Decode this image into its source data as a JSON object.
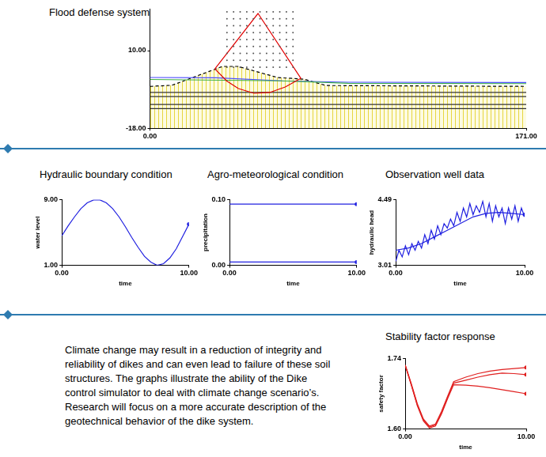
{
  "chart_data": [
    {
      "type": "line",
      "title": "Flood defense system",
      "xlim": [
        0,
        171
      ],
      "ylim": [
        -18,
        25
      ],
      "xticks": [
        {
          "value": 0,
          "label": "0.00"
        },
        {
          "value": 171,
          "label": "171.00"
        }
      ],
      "yticks": [
        {
          "value": -18,
          "label": "-18.00"
        },
        {
          "value": 10,
          "label": "10.00"
        }
      ],
      "grid": false,
      "series": [
        {
          "type": "area",
          "color": "#000000",
          "line_style": "dashed",
          "x": [
            0,
            10,
            33,
            40,
            58,
            70,
            80,
            171
          ],
          "values": [
            -2.9,
            -2.5,
            4.3,
            4.3,
            0.3,
            -0.3,
            -2.6,
            -2.9
          ]
        },
        {
          "color": "#333333",
          "x": [
            0,
            171
          ],
          "values": [
            -5.1,
            -5.1
          ]
        },
        {
          "color": "#333333",
          "x": [
            0,
            171
          ],
          "values": [
            -6.6,
            -6.6
          ]
        },
        {
          "color": "#333333",
          "x": [
            0,
            171
          ],
          "values": [
            -9.4,
            -9.4
          ]
        },
        {
          "color": "#333333",
          "x": [
            0,
            171
          ],
          "values": [
            -10.9,
            -10.9
          ]
        },
        {
          "color": "#4a4aff",
          "x": [
            0,
            30,
            60,
            90,
            171
          ],
          "values": [
            0.3,
            0.2,
            -0.9,
            -1.4,
            -1.5
          ]
        },
        {
          "color": "#3cb043",
          "x": [
            0,
            60,
            90,
            171
          ],
          "values": [
            -0.4,
            -0.9,
            -1.8,
            -1.9
          ]
        },
        {
          "color": "#e00000",
          "x": [
            29.5,
            34.8,
            40.2,
            47.3,
            54.4,
            61.5,
            68.6
          ],
          "values": [
            3.4,
            -0.9,
            -3.7,
            -5.4,
            -5.1,
            -3.1,
            0.0
          ]
        },
        {
          "color": "#e00000",
          "x": [
            29.5,
            49.1,
            68.6
          ],
          "values": [
            3.4,
            23.4,
            0.0
          ]
        },
        {
          "type": "scatter",
          "color": "#555555",
          "marker": "dot",
          "grid_x": [
            35,
            38,
            41,
            44,
            47,
            50,
            53,
            56,
            59,
            62,
            65
          ],
          "grid_y": [
            24,
            21.5,
            19,
            16.5,
            14,
            11.5,
            9,
            6.5,
            4
          ]
        }
      ]
    },
    {
      "type": "line",
      "title": "Hydraulic boundary condition",
      "x_label": "time",
      "y_label": "water level",
      "xlim": [
        0,
        10
      ],
      "ylim": [
        1,
        9
      ],
      "xticks": [
        {
          "value": 0,
          "label": "0.00"
        },
        {
          "value": 10,
          "label": "10.00"
        }
      ],
      "yticks": [
        {
          "value": 1,
          "label": "1.00"
        },
        {
          "value": 9,
          "label": "9.00"
        }
      ],
      "grid": false,
      "x": [
        0,
        0.5,
        1,
        1.5,
        2,
        2.5,
        3,
        3.5,
        4,
        4.5,
        5,
        5.5,
        6,
        6.5,
        7,
        7.5,
        8,
        8.5,
        9,
        9.5,
        10
      ],
      "series": [
        {
          "color": "#2020e0",
          "marker": "end",
          "values": [
            4.6,
            5.8,
            6.9,
            7.9,
            8.6,
            8.95,
            8.95,
            8.6,
            7.9,
            6.9,
            5.7,
            4.4,
            3.2,
            2.1,
            1.4,
            1.0,
            1.2,
            1.9,
            3.0,
            4.5,
            6.0
          ]
        }
      ]
    },
    {
      "type": "line",
      "title": "Agro-meteorological condition",
      "x_label": "time",
      "y_label": "precipitation",
      "xlim": [
        0,
        10
      ],
      "ylim": [
        0,
        0.1
      ],
      "xticks": [
        {
          "value": 0,
          "label": "0.00"
        },
        {
          "value": 10,
          "label": "10.00"
        }
      ],
      "yticks": [
        {
          "value": 0,
          "label": "0.00"
        },
        {
          "value": 0.1,
          "label": "0.10"
        }
      ],
      "grid": false,
      "x": [
        0,
        10
      ],
      "series": [
        {
          "color": "#2020e0",
          "marker": "end",
          "values": [
            0.093,
            0.093
          ]
        },
        {
          "color": "#2020e0",
          "marker": "end",
          "values": [
            0.005,
            0.005
          ]
        }
      ]
    },
    {
      "type": "line",
      "title": "Observation well data",
      "x_label": "time",
      "y_label": "hydraulic head",
      "xlim": [
        0,
        10
      ],
      "ylim": [
        3.01,
        4.49
      ],
      "xticks": [
        {
          "value": 0,
          "label": "0.00"
        },
        {
          "value": 10,
          "label": "10.00"
        }
      ],
      "yticks": [
        3.01,
        4.49
      ],
      "grid": false,
      "series": [
        {
          "color": "#2020e0",
          "x": [
            0,
            0.25,
            0.5,
            0.75,
            1,
            1.25,
            1.5,
            1.75,
            2,
            2.25,
            2.5,
            2.75,
            3,
            3.25,
            3.5,
            3.75,
            4,
            4.25,
            4.5,
            4.75,
            5,
            5.25,
            5.5,
            5.75,
            6,
            6.25,
            6.5,
            6.75,
            7,
            7.25,
            7.5,
            7.75,
            8,
            8.25,
            8.5,
            8.75,
            9,
            9.25,
            9.5,
            9.75,
            10
          ],
          "values": [
            3.1,
            3.35,
            3.2,
            3.45,
            3.25,
            3.5,
            3.35,
            3.55,
            3.4,
            3.7,
            3.5,
            3.8,
            3.6,
            3.9,
            3.7,
            3.95,
            3.85,
            4.05,
            3.9,
            4.2,
            4.0,
            4.3,
            4.1,
            4.4,
            4.15,
            4.35,
            4.2,
            4.45,
            4.1,
            4.4,
            4.0,
            4.35,
            4.1,
            4.3,
            3.95,
            4.3,
            4.05,
            4.35,
            4.0,
            4.3,
            4.1
          ]
        },
        {
          "color": "#2020e0",
          "marker": "end",
          "x": [
            0,
            1,
            2,
            3,
            4,
            5,
            6,
            7,
            8,
            9,
            10
          ],
          "values": [
            3.35,
            3.4,
            3.5,
            3.65,
            3.8,
            3.95,
            4.1,
            4.18,
            4.2,
            4.18,
            4.15
          ]
        }
      ]
    },
    {
      "type": "line",
      "title": "Stability factor response",
      "x_label": "time",
      "y_label": "safety factor",
      "xlim": [
        0,
        10
      ],
      "ylim": [
        1.6,
        1.74
      ],
      "xticks": [
        {
          "value": 0,
          "label": "0.00"
        },
        {
          "value": 10,
          "label": "10.00"
        }
      ],
      "yticks": [
        {
          "value": 1.6,
          "label": "1.60"
        },
        1.74
      ],
      "grid": false,
      "x": [
        0,
        0.5,
        1,
        1.5,
        2,
        2.5,
        3,
        3.5,
        4,
        5,
        6,
        7,
        8,
        9,
        10
      ],
      "series": [
        {
          "color": "#e02020",
          "marker": "end",
          "values": [
            1.727,
            1.69,
            1.65,
            1.62,
            1.606,
            1.61,
            1.635,
            1.665,
            1.694,
            1.703,
            1.71,
            1.715,
            1.718,
            1.72,
            1.722
          ]
        },
        {
          "color": "#e02020",
          "marker": "end",
          "values": [
            1.727,
            1.688,
            1.648,
            1.618,
            1.604,
            1.608,
            1.632,
            1.662,
            1.691,
            1.697,
            1.703,
            1.708,
            1.711,
            1.71,
            1.708
          ]
        },
        {
          "color": "#e02020",
          "marker": "end",
          "values": [
            1.726,
            1.687,
            1.646,
            1.616,
            1.602,
            1.606,
            1.63,
            1.66,
            1.688,
            1.687,
            1.685,
            1.682,
            1.678,
            1.674,
            1.67
          ]
        }
      ]
    }
  ],
  "text": "Climate change may result in a reduction of integrity and reliability of dikes and can even lead to failure of these soil structures. The graphs illustrate the ability of the Dike control simulator to deal with climate change scenario’s. Research will focus on a more accurate description of the geotechnical behavior of the dike system."
}
